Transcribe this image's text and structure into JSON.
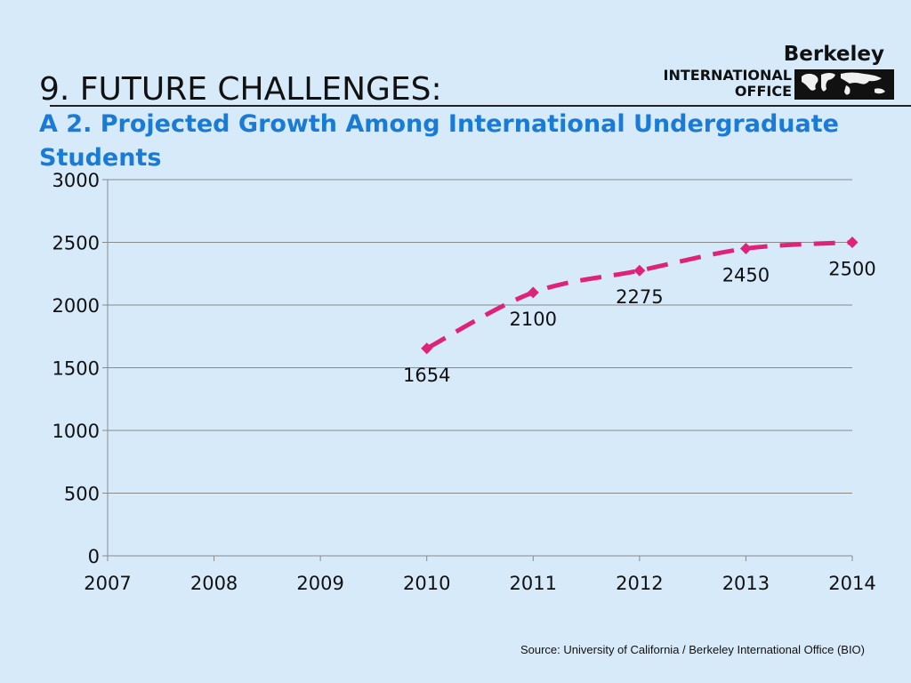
{
  "header": {
    "title": "9.  FUTURE CHALLENGES:",
    "subtitle": "A 2. Projected Growth Among International Undergraduate Students",
    "logo": {
      "line1": "Berkeley",
      "line2": "INTERNATIONAL",
      "line3": "OFFICE",
      "map_icon": "world-map-icon"
    }
  },
  "chart_data": {
    "type": "line",
    "x": [
      2010,
      2011,
      2012,
      2013,
      2014
    ],
    "series": [
      {
        "values": [
          1654,
          2100,
          2275,
          2450,
          2500
        ],
        "color": "#e0237a"
      }
    ],
    "xticks": [
      "2007",
      "2008",
      "2009",
      "2010",
      "2011",
      "2012",
      "2013",
      "2014"
    ],
    "yticks": [
      "0",
      "500",
      "1000",
      "1500",
      "2000",
      "2500",
      "3000"
    ],
    "xlim": [
      2007,
      2014
    ],
    "ylim": [
      0,
      3000
    ],
    "grid": true,
    "line_style": "dashed",
    "marker": "diamond"
  },
  "footer": {
    "source": "Source:  University of California / Berkeley International Office (BIO)"
  }
}
